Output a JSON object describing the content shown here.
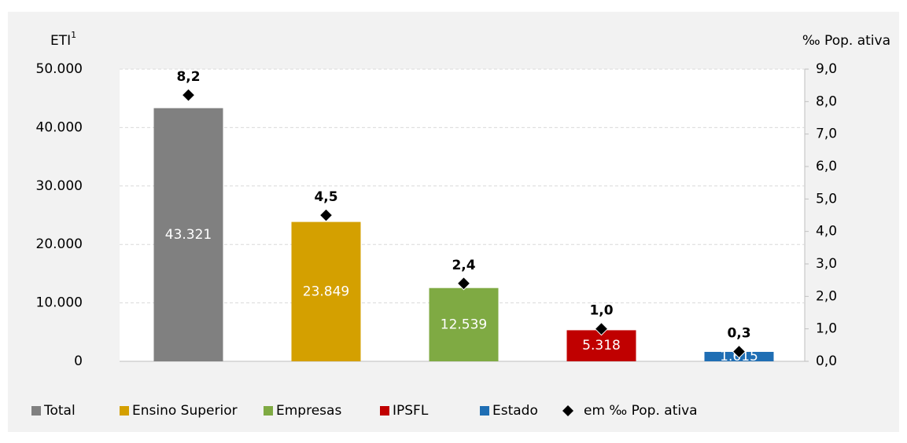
{
  "chart_data": {
    "type": "bar",
    "y_label": "ETI",
    "y_label_sup": "1",
    "y2_label": "‰ Pop. ativa",
    "categories": [
      "Total",
      "Ensino Superior",
      "Empresas",
      "IPSFL",
      "Estado"
    ],
    "values": [
      43321,
      23849,
      12539,
      5318,
      1615
    ],
    "value_labels": [
      "43.321",
      "23.849",
      "12.539",
      "5.318",
      "1.615"
    ],
    "colors": [
      "#808080",
      "#d4a000",
      "#7faa43",
      "#c00000",
      "#1f6eb4"
    ],
    "markers": {
      "type": "scatter",
      "name": "em ‰ Pop. ativa",
      "axis": "y2",
      "color": "#000000",
      "values": [
        8.2,
        4.5,
        2.4,
        1.0,
        0.3
      ],
      "value_labels": [
        "8,2",
        "4,5",
        "2,4",
        "1,0",
        "0,3"
      ]
    },
    "ylim": [
      0,
      50000
    ],
    "yticks": [
      0,
      {
        "value": 10000,
        "label": "10.000"
      },
      {
        "value": 20000,
        "label": "20.000"
      },
      {
        "value": 30000,
        "label": "30.000"
      },
      {
        "value": 40000,
        "label": "40.000"
      },
      {
        "value": 50000,
        "label": "50.000"
      }
    ],
    "y2lim": [
      0,
      9
    ],
    "y2ticks": [
      {
        "value": 0,
        "label": "0,0"
      },
      {
        "value": 1,
        "label": "1,0"
      },
      {
        "value": 2,
        "label": "2,0"
      },
      {
        "value": 3,
        "label": "3,0"
      },
      {
        "value": 4,
        "label": "4,0"
      },
      {
        "value": 5,
        "label": "5,0"
      },
      {
        "value": 6,
        "label": "6,0"
      },
      {
        "value": 7,
        "label": "7,0"
      },
      {
        "value": 8,
        "label": "8,0"
      },
      {
        "value": 9,
        "label": "9,0"
      }
    ],
    "grid": true
  }
}
